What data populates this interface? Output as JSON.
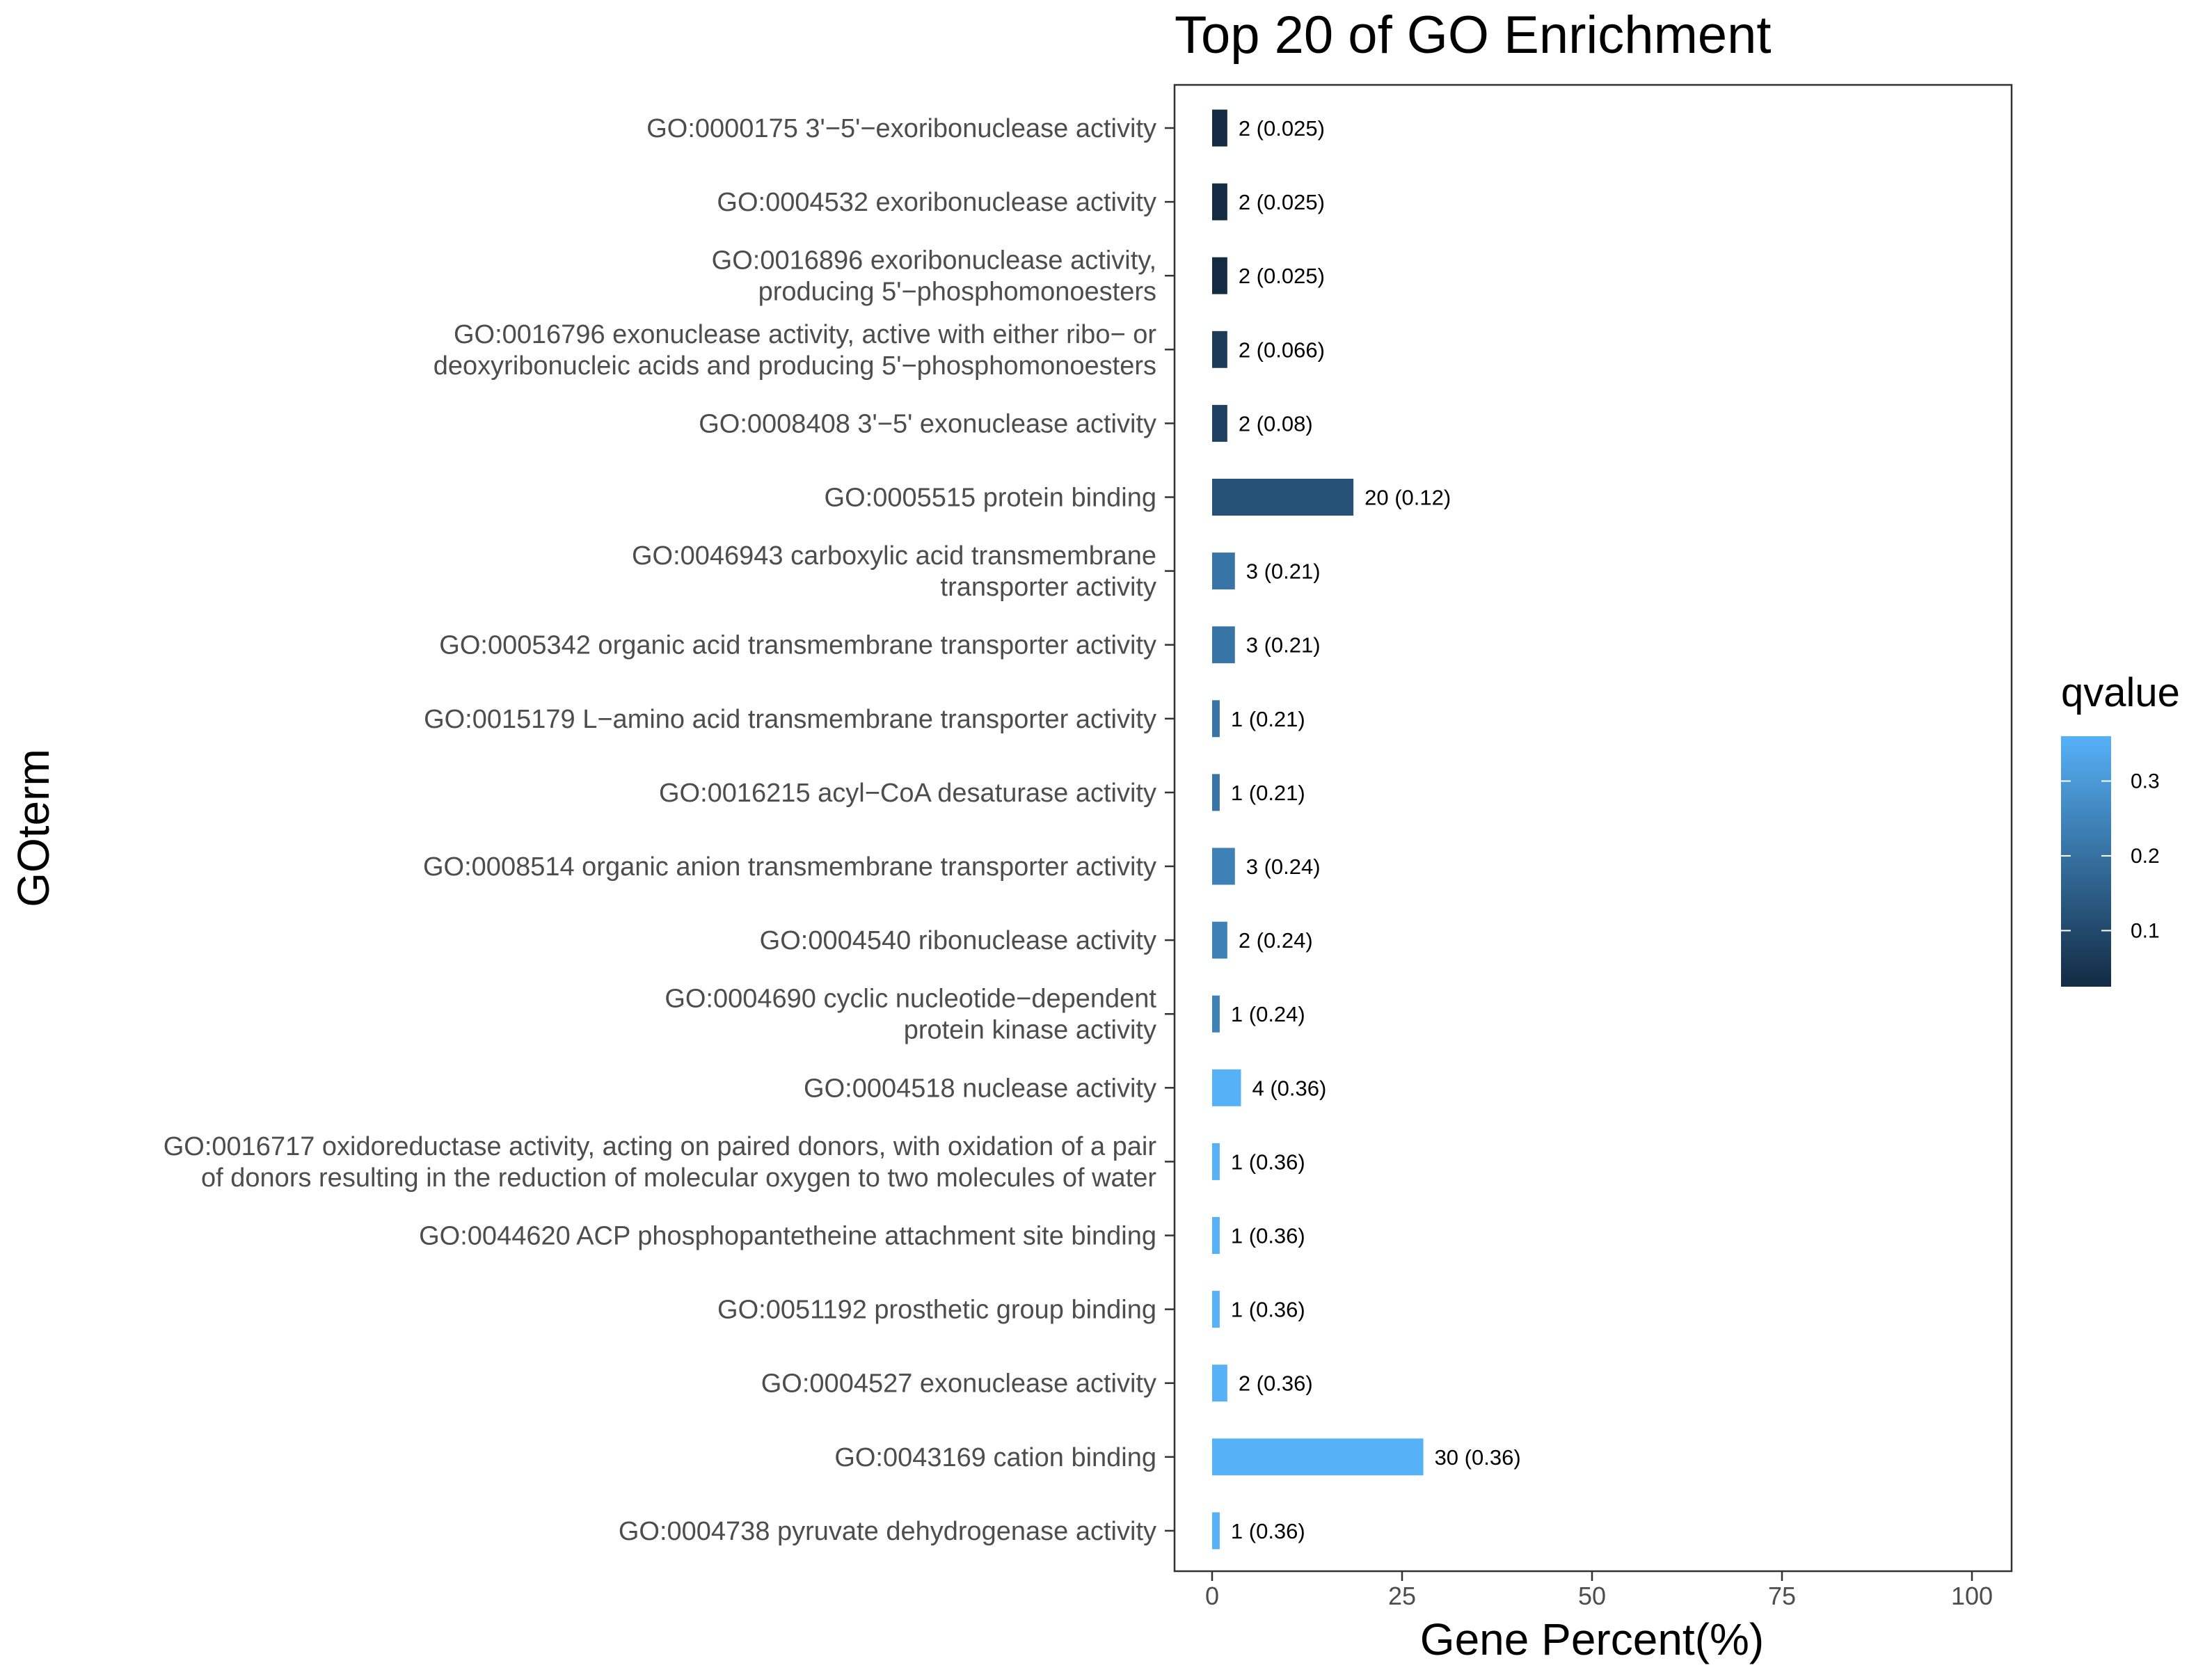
{
  "chart_data": {
    "type": "bar",
    "orientation": "horizontal",
    "title": "Top 20 of GO Enrichment",
    "xlabel": "Gene Percent(%)",
    "ylabel": "GOterm",
    "xlim": [
      0,
      100
    ],
    "x_ticks": [
      "0",
      "25",
      "50",
      "75",
      "100"
    ],
    "grid": false,
    "color_scale": {
      "name": "qvalue",
      "low_color": "#132B43",
      "high_color": "#56B1F7",
      "range": [
        0.025,
        0.36
      ],
      "ticks": [
        "0.1",
        "0.2",
        "0.3"
      ],
      "legend_position": "right"
    },
    "categories": [
      [
        "GO:0000175 3'−5'−exoribonuclease activity"
      ],
      [
        "GO:0004532 exoribonuclease activity"
      ],
      [
        "GO:0016896 exoribonuclease activity,",
        "producing 5'−phosphomonoesters"
      ],
      [
        "GO:0016796 exonuclease activity, active with either ribo− or",
        "deoxyribonucleic acids and producing 5'−phosphomonoesters"
      ],
      [
        "GO:0008408 3'−5' exonuclease activity"
      ],
      [
        "GO:0005515 protein binding"
      ],
      [
        "GO:0046943 carboxylic acid transmembrane",
        "transporter activity"
      ],
      [
        "GO:0005342 organic acid transmembrane transporter activity"
      ],
      [
        "GO:0015179 L−amino acid transmembrane transporter activity"
      ],
      [
        "GO:0016215 acyl−CoA desaturase activity"
      ],
      [
        "GO:0008514 organic anion transmembrane transporter activity"
      ],
      [
        "GO:0004540 ribonuclease activity"
      ],
      [
        "GO:0004690 cyclic nucleotide−dependent",
        "protein kinase activity"
      ],
      [
        "GO:0004518 nuclease activity"
      ],
      [
        "GO:0016717 oxidoreductase activity, acting on paired donors, with oxidation of a pair",
        "of donors resulting in the reduction of molecular oxygen to two molecules of water"
      ],
      [
        "GO:0044620 ACP phosphopantetheine attachment site binding"
      ],
      [
        "GO:0051192 prosthetic group binding"
      ],
      [
        "GO:0004527 exonuclease activity"
      ],
      [
        "GO:0043169 cation binding"
      ],
      [
        "GO:0004738 pyruvate dehydrogenase activity"
      ]
    ],
    "values": [
      2.0,
      2.0,
      2.0,
      2.0,
      2.0,
      18.6,
      3.0,
      3.0,
      1.0,
      1.0,
      3.0,
      2.0,
      1.0,
      3.8,
      1.0,
      1.0,
      1.0,
      2.0,
      27.8,
      1.0
    ],
    "qvalues": [
      0.025,
      0.025,
      0.025,
      0.066,
      0.08,
      0.12,
      0.21,
      0.21,
      0.21,
      0.21,
      0.24,
      0.24,
      0.24,
      0.36,
      0.36,
      0.36,
      0.36,
      0.36,
      0.36,
      0.36
    ],
    "data_labels": [
      "2 (0.025)",
      "2 (0.025)",
      "2 (0.025)",
      "2 (0.066)",
      "2 (0.08)",
      "20 (0.12)",
      "3 (0.21)",
      "3 (0.21)",
      "1 (0.21)",
      "1 (0.21)",
      "3 (0.24)",
      "2 (0.24)",
      "1 (0.24)",
      "4 (0.36)",
      "1 (0.36)",
      "1 (0.36)",
      "1 (0.36)",
      "2 (0.36)",
      "30 (0.36)",
      "1 (0.36)"
    ]
  }
}
